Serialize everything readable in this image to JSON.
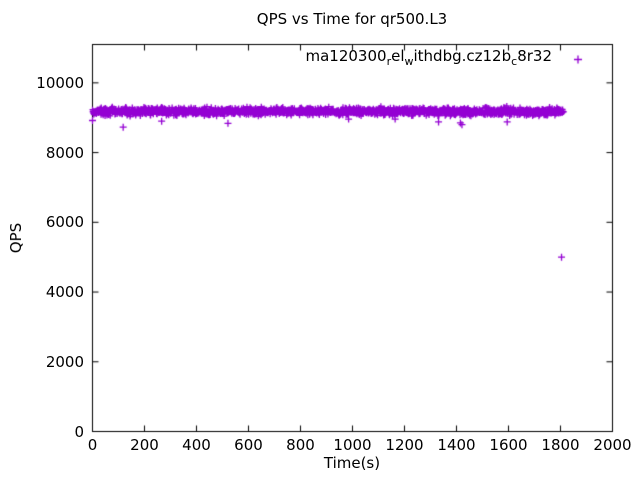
{
  "title": "QPS vs Time for qr500.L3",
  "colors": {
    "series": "#9400D3",
    "axis": "#000000",
    "background": "#ffffff"
  },
  "legend": {
    "series_label_plain": "ma120300_rel_withdbg.cz12b_c8r32",
    "segments": [
      {
        "t": "ma120300",
        "sub": false
      },
      {
        "t": "r",
        "sub": true
      },
      {
        "t": "el",
        "sub": false
      },
      {
        "t": "w",
        "sub": true
      },
      {
        "t": "ithdbg.cz12b",
        "sub": false
      },
      {
        "t": "c",
        "sub": true
      },
      {
        "t": "8r32",
        "sub": false
      }
    ],
    "marker": "plus"
  },
  "axes": {
    "x": {
      "label": "Time(s)",
      "min": 0,
      "max": 2000,
      "ticks": [
        0,
        200,
        400,
        600,
        800,
        1000,
        1200,
        1400,
        1600,
        1800,
        2000
      ]
    },
    "y": {
      "label": "QPS",
      "min": 0,
      "max": 11100,
      "ticks": [
        0,
        2000,
        4000,
        6000,
        8000,
        10000
      ]
    }
  },
  "chart_data": {
    "type": "scatter",
    "marker": "plus",
    "color": "#9400D3",
    "title": "QPS vs Time for qr500.L3",
    "xlabel": "Time(s)",
    "ylabel": "QPS",
    "xlim": [
      0,
      2000
    ],
    "ylim": [
      0,
      11100
    ],
    "grid": false,
    "legend_position": "top-right-inside",
    "series": [
      {
        "name": "ma120300_rel_withdbg.cz12b_c8r32",
        "band_summary": {
          "description": "dense steady-state band of ~1 sample/second",
          "t_start": 0,
          "t_end": 1812,
          "qps_mean": 9180,
          "qps_spread": 165,
          "n_points": 1810,
          "rng_seed": 42
        },
        "outliers": [
          [
            0,
            8920
          ],
          [
            118,
            8730
          ],
          [
            266,
            8900
          ],
          [
            521,
            8840
          ],
          [
            985,
            8960
          ],
          [
            1164,
            8960
          ],
          [
            1331,
            8880
          ],
          [
            1415,
            8850
          ],
          [
            1421,
            8800
          ],
          [
            1595,
            8880
          ],
          [
            1804,
            5000
          ]
        ]
      }
    ]
  }
}
